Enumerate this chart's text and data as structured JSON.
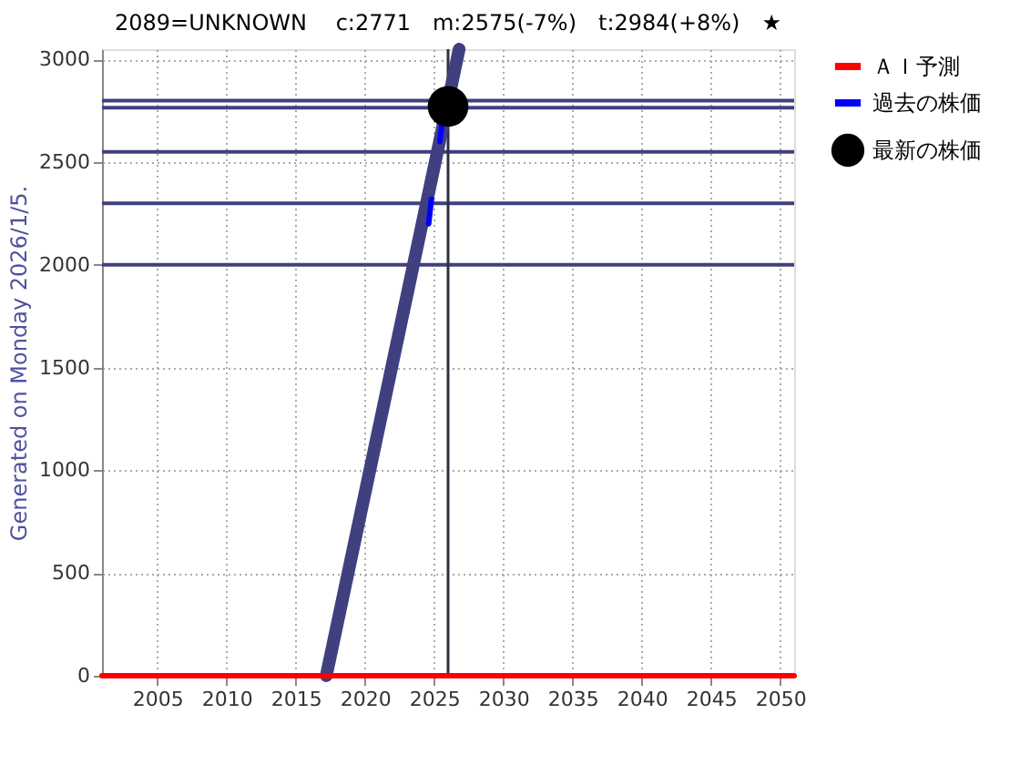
{
  "chart_data": {
    "type": "line",
    "title": "2089=UNKNOWN　 c:2771　m:2575(-7%)　t:2984(+8%)　★",
    "ylabel": "Generated on Monday 2026/1/5.",
    "xlim": [
      2001,
      2051
    ],
    "xticks": [
      2005,
      2010,
      2015,
      2020,
      2025,
      2030,
      2035,
      2040,
      2045,
      2050
    ],
    "ylim": [
      0,
      3050
    ],
    "yticks": [
      0,
      500,
      1000,
      1500,
      2000,
      2500,
      3000
    ],
    "grid": true,
    "legend": "right",
    "series": [
      {
        "name": "ＡＩ予測",
        "color": "#ff0000",
        "x": [
          2001,
          2051
        ],
        "values": [
          0,
          0
        ]
      },
      {
        "name": "過去の株価",
        "color": "#0000ff",
        "x": [
          2024.6,
          2024.8,
          null,
          2025.4,
          2025.6
        ],
        "values": [
          2200,
          2320,
          null,
          2600,
          2700
        ]
      },
      {
        "name": "最新の株価",
        "type": "scatter",
        "marker": "circle",
        "color": "#000000",
        "x": [
          2026.0
        ],
        "values": [
          2771
        ]
      },
      {
        "color": "#404080",
        "x": [
          2017.2,
          2026.8
        ],
        "values": [
          0,
          3050
        ]
      }
    ],
    "ref_lines": [
      {
        "axis": "y",
        "value": 2800,
        "color": "#404080"
      },
      {
        "axis": "y",
        "value": 2765,
        "color": "#404080"
      },
      {
        "axis": "y",
        "value": 2550,
        "color": "#404080"
      },
      {
        "axis": "y",
        "value": 2300,
        "color": "#404080"
      },
      {
        "axis": "y",
        "value": 2000,
        "color": "#404080"
      },
      {
        "axis": "x",
        "value": 2026.0,
        "color": "#303040"
      }
    ]
  }
}
